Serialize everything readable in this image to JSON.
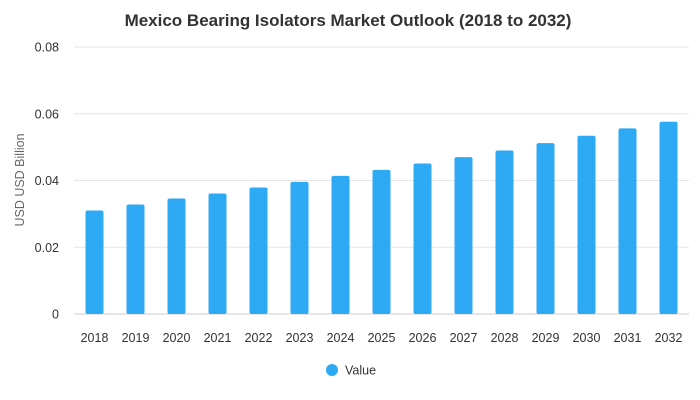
{
  "chart_data": {
    "type": "bar",
    "title": "Mexico Bearing Isolators Market Outlook (2018 to 2032)",
    "xlabel": "",
    "ylabel": "USD USD Billion",
    "ylim": [
      0,
      0.08
    ],
    "yticks": [
      "0",
      "0.02",
      "0.04",
      "0.06",
      "0.08"
    ],
    "categories": [
      "2018",
      "2019",
      "2020",
      "2021",
      "2022",
      "2023",
      "2024",
      "2025",
      "2026",
      "2027",
      "2028",
      "2029",
      "2030",
      "2031",
      "2032"
    ],
    "series": [
      {
        "name": "Value",
        "color": "#2eaaf5",
        "values": [
          0.031,
          0.0328,
          0.0346,
          0.0361,
          0.0379,
          0.0396,
          0.0414,
          0.0432,
          0.0451,
          0.047,
          0.049,
          0.0512,
          0.0534,
          0.0556,
          0.0576
        ]
      }
    ],
    "grid": true,
    "legend": "bottom-center"
  }
}
